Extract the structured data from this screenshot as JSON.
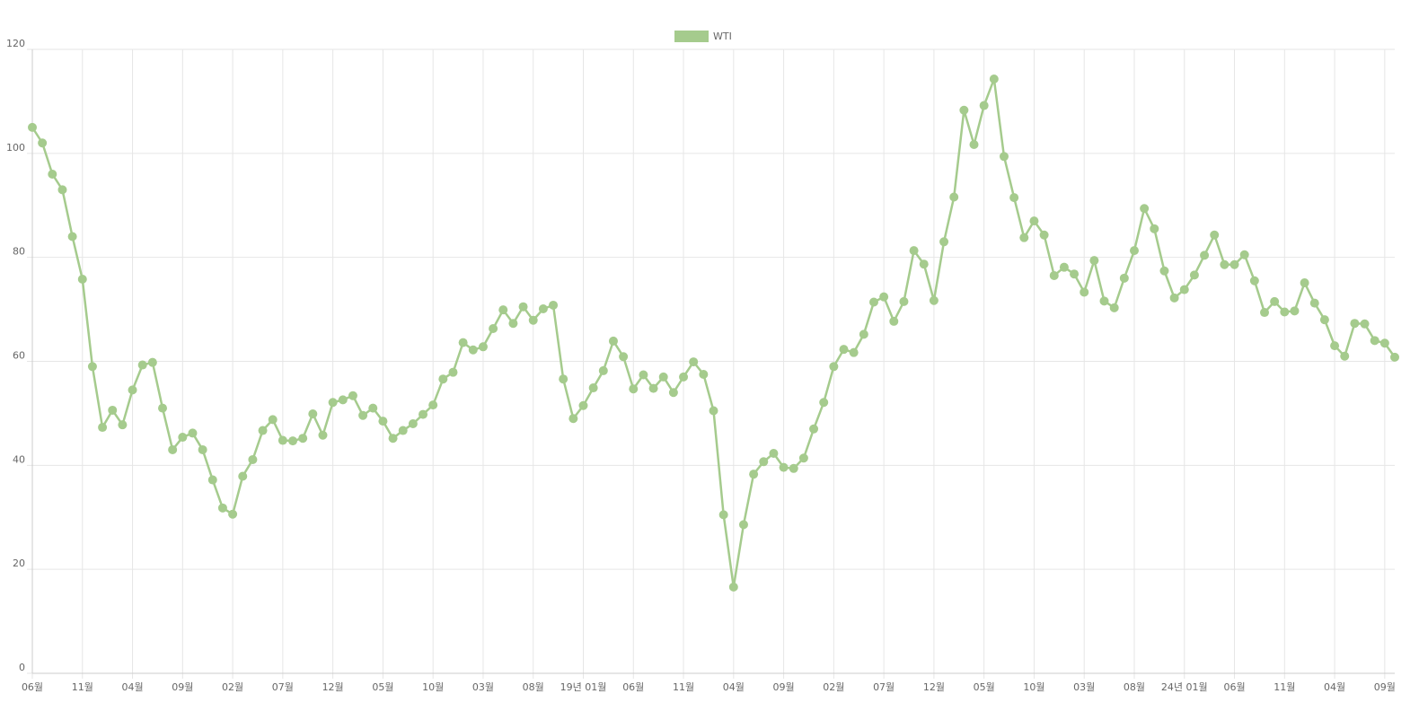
{
  "chart_data": {
    "type": "line",
    "categories": [
      "06월",
      null,
      null,
      null,
      null,
      "11월",
      null,
      null,
      null,
      null,
      "04월",
      null,
      null,
      null,
      null,
      "09월",
      null,
      null,
      null,
      null,
      "02월",
      null,
      null,
      null,
      null,
      "07월",
      null,
      null,
      null,
      null,
      "12월",
      null,
      null,
      null,
      null,
      "05월",
      null,
      null,
      null,
      null,
      "10월",
      null,
      null,
      null,
      null,
      "03월",
      null,
      null,
      null,
      null,
      "08월",
      null,
      null,
      null,
      null,
      "19년 01월",
      null,
      null,
      null,
      null,
      "06월",
      null,
      null,
      null,
      null,
      "11월",
      null,
      null,
      null,
      null,
      "04월",
      null,
      null,
      null,
      null,
      "09월",
      null,
      null,
      null,
      null,
      "02월",
      null,
      null,
      null,
      null,
      "07월",
      null,
      null,
      null,
      null,
      "12월",
      null,
      null,
      null,
      null,
      "05월",
      null,
      null,
      null,
      null,
      "10월",
      null,
      null,
      null,
      null,
      "03월",
      null,
      null,
      null,
      null,
      "08월",
      null,
      null,
      null,
      null,
      "24년 01월",
      null,
      null,
      null,
      null,
      "06월",
      null,
      null,
      null,
      null,
      "11월",
      null,
      null,
      null,
      null,
      "04월",
      null,
      null,
      null,
      null,
      "09월",
      null
    ],
    "series": [
      {
        "name": "WTI",
        "color": "#a5cb8d",
        "values": [
          105,
          102,
          96,
          93,
          84,
          75.8,
          59,
          47.3,
          50.6,
          47.8,
          54.5,
          59.3,
          59.8,
          51,
          43,
          45.4,
          46.2,
          43,
          37.2,
          31.8,
          30.6,
          37.9,
          41.1,
          46.7,
          48.8,
          44.8,
          44.7,
          45.2,
          49.9,
          45.8,
          52.1,
          52.6,
          53.4,
          49.6,
          51,
          48.5,
          45.2,
          46.7,
          48,
          49.8,
          51.6,
          56.6,
          57.9,
          63.6,
          62.2,
          62.8,
          66.3,
          69.9,
          67.3,
          70.5,
          67.9,
          70.1,
          70.8,
          56.6,
          49,
          51.5,
          54.9,
          58.2,
          63.9,
          60.9,
          54.7,
          57.4,
          54.8,
          57,
          54,
          57,
          59.9,
          57.5,
          50.5,
          30.5,
          16.6,
          28.6,
          38.3,
          40.7,
          42.3,
          39.6,
          39.4,
          41.4,
          47,
          52.1,
          59,
          62.3,
          61.7,
          65.2,
          71.4,
          72.4,
          67.7,
          71.5,
          81.3,
          78.7,
          71.7,
          83,
          91.6,
          108.3,
          101.7,
          109.2,
          114.3,
          99.4,
          91.5,
          83.8,
          87,
          84.3,
          76.5,
          78.1,
          76.8,
          73.3,
          79.4,
          71.6,
          70.3,
          76,
          81.3,
          89.4,
          85.5,
          77.4,
          72.2,
          73.8,
          76.6,
          80.4,
          84.3,
          78.6,
          78.6,
          80.5,
          75.5,
          69.4,
          71.5,
          69.5,
          69.7,
          75.1,
          71.2,
          68,
          63,
          61,
          67.3,
          67.2,
          64,
          63.5,
          60.8
        ]
      }
    ],
    "ylim": [
      0,
      120
    ],
    "yticks": [
      0,
      20,
      40,
      60,
      80,
      100,
      120
    ],
    "grid": true,
    "legend": "top"
  }
}
